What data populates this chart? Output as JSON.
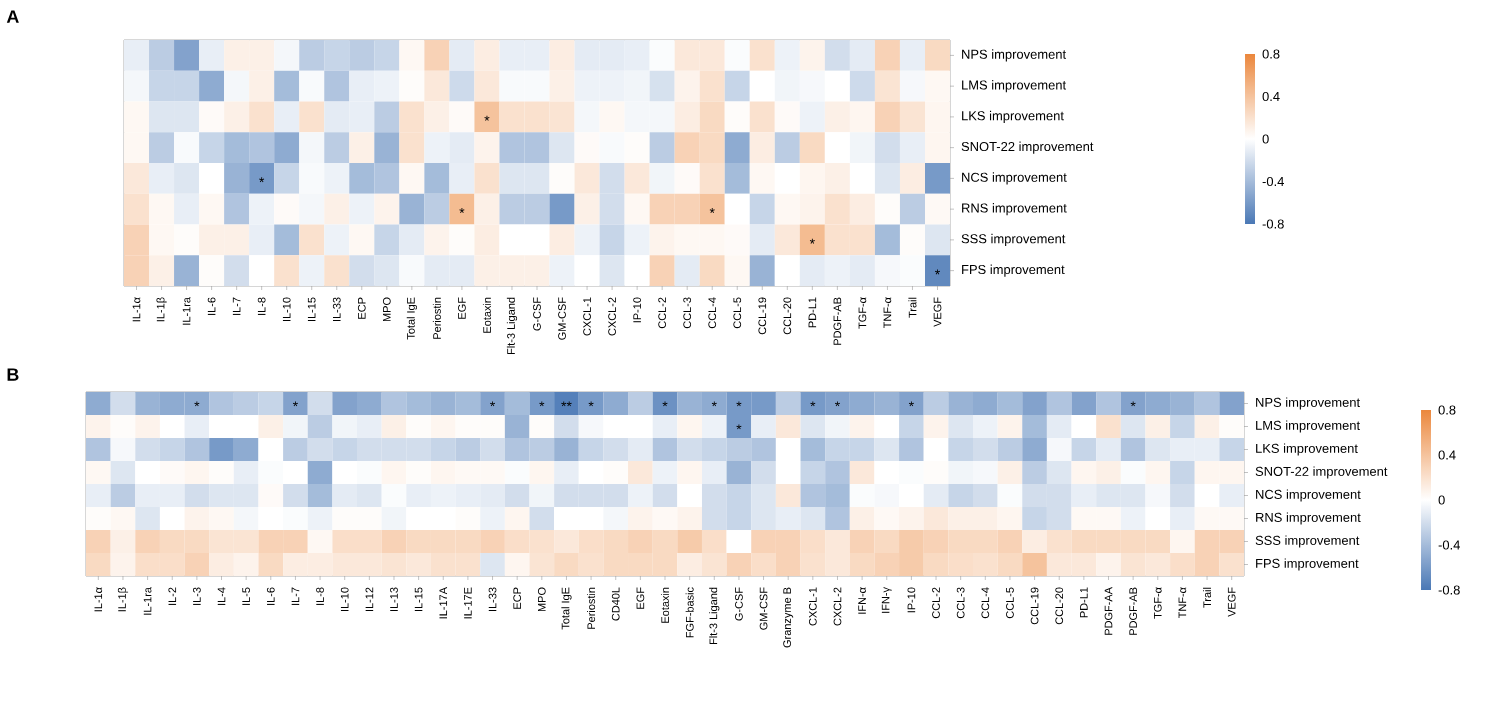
{
  "chart_data": [
    {
      "type": "heatmap",
      "title": "A",
      "categories": [
        "IL-1α",
        "IL-1β",
        "IL-1ra",
        "IL-6",
        "IL-7",
        "IL-8",
        "IL-10",
        "IL-15",
        "IL-33",
        "ECP",
        "MPO",
        "Total IgE",
        "Periostin",
        "EGF",
        "Eotaxin",
        "Flt-3 Ligand",
        "G-CSF",
        "GM-CSF",
        "CXCL-1",
        "CXCL-2",
        "IP-10",
        "CCL-2",
        "CCL-3",
        "CCL-4",
        "CCL-5",
        "CCL-19",
        "CCL-20",
        "PD-L1",
        "PDGF-AB",
        "TGF-α",
        "TNF-α",
        "Trail",
        "VEGF"
      ],
      "y_categories": [
        "NPS improvement",
        "LMS improvement",
        "LKS improvement",
        "SNOT-22 improvement",
        "NCS improvement",
        "RNS improvement",
        "SSS improvement",
        "FPS improvement"
      ],
      "cells": [
        [
          -0.1,
          -0.3,
          -0.55,
          -0.1,
          0.1,
          0.1,
          -0.05,
          -0.3,
          -0.25,
          -0.3,
          -0.25,
          0.05,
          0.3,
          -0.12,
          0.12,
          -0.1,
          -0.1,
          0.12,
          -0.12,
          -0.12,
          -0.1,
          -0.02,
          0.15,
          0.15,
          -0.02,
          0.2,
          -0.08,
          0.08,
          -0.2,
          -0.12,
          0.3,
          -0.1,
          0.25
        ],
        [
          -0.05,
          -0.25,
          -0.25,
          -0.5,
          -0.05,
          0.1,
          -0.4,
          -0.03,
          -0.35,
          -0.1,
          -0.08,
          0.02,
          0.15,
          -0.22,
          0.15,
          -0.03,
          -0.03,
          0.1,
          -0.08,
          -0.08,
          -0.06,
          -0.18,
          0.08,
          0.2,
          -0.25,
          0.0,
          -0.06,
          -0.04,
          0.0,
          -0.22,
          0.18,
          -0.04,
          0.05
        ],
        [
          0.05,
          -0.15,
          -0.15,
          0.03,
          0.1,
          0.2,
          -0.1,
          0.2,
          -0.12,
          -0.1,
          -0.3,
          0.2,
          0.1,
          0.03,
          0.4,
          0.2,
          0.2,
          0.18,
          -0.05,
          0.05,
          -0.05,
          -0.05,
          0.12,
          0.25,
          0.02,
          0.2,
          0.03,
          -0.08,
          0.1,
          0.06,
          0.3,
          0.18,
          0.06
        ],
        [
          0.05,
          -0.3,
          -0.03,
          -0.25,
          -0.4,
          -0.35,
          -0.5,
          -0.05,
          -0.3,
          0.1,
          -0.45,
          0.2,
          -0.08,
          -0.12,
          0.08,
          -0.35,
          -0.35,
          -0.15,
          0.03,
          -0.03,
          0.02,
          -0.3,
          0.3,
          0.25,
          -0.5,
          0.12,
          -0.3,
          0.25,
          0.0,
          -0.06,
          -0.2,
          -0.1,
          0.06
        ],
        [
          0.15,
          -0.1,
          -0.15,
          0.0,
          -0.45,
          -0.6,
          -0.25,
          -0.03,
          -0.08,
          -0.4,
          -0.35,
          0.05,
          -0.4,
          -0.1,
          0.2,
          -0.15,
          -0.15,
          0.02,
          0.15,
          -0.2,
          0.15,
          -0.06,
          0.03,
          0.2,
          -0.4,
          0.05,
          0.0,
          0.06,
          0.1,
          0.0,
          -0.15,
          0.12,
          -0.6
        ],
        [
          0.2,
          0.05,
          -0.1,
          0.05,
          -0.35,
          -0.08,
          0.03,
          -0.05,
          0.1,
          -0.08,
          0.08,
          -0.45,
          -0.3,
          0.45,
          0.1,
          -0.3,
          -0.3,
          -0.6,
          0.1,
          -0.2,
          0.05,
          0.3,
          0.3,
          0.4,
          0.0,
          -0.25,
          0.05,
          0.08,
          0.2,
          0.12,
          0.02,
          -0.3,
          0.04
        ],
        [
          0.3,
          0.05,
          0.02,
          0.1,
          0.1,
          -0.1,
          -0.4,
          0.2,
          -0.08,
          0.05,
          -0.25,
          -0.12,
          0.08,
          0.02,
          0.12,
          0.0,
          0.0,
          0.12,
          -0.08,
          -0.25,
          -0.08,
          0.08,
          0.05,
          0.05,
          0.03,
          -0.12,
          0.15,
          0.45,
          0.2,
          0.2,
          -0.4,
          0.02,
          -0.15
        ],
        [
          0.3,
          0.1,
          -0.45,
          0.02,
          -0.2,
          0.0,
          0.2,
          -0.08,
          0.2,
          -0.2,
          -0.15,
          -0.03,
          -0.12,
          -0.12,
          0.1,
          0.1,
          0.1,
          -0.08,
          0.0,
          -0.15,
          0.0,
          0.3,
          -0.12,
          0.25,
          0.05,
          -0.45,
          0.0,
          -0.12,
          -0.08,
          -0.12,
          -0.04,
          -0.02,
          -0.7
        ]
      ],
      "cell_labels": [
        [
          null,
          null,
          null,
          null,
          null,
          null,
          null,
          null,
          null,
          null,
          null,
          null,
          null,
          null,
          null,
          null,
          null,
          null,
          null,
          null,
          null,
          null,
          null,
          null,
          null,
          null,
          null,
          null,
          null,
          null,
          null,
          null,
          null
        ],
        [
          null,
          null,
          null,
          null,
          null,
          null,
          null,
          null,
          null,
          null,
          null,
          null,
          null,
          null,
          null,
          null,
          null,
          null,
          null,
          null,
          null,
          null,
          null,
          null,
          null,
          null,
          null,
          null,
          null,
          null,
          null,
          null,
          null
        ],
        [
          null,
          null,
          null,
          null,
          null,
          null,
          null,
          null,
          null,
          null,
          null,
          null,
          null,
          null,
          "*",
          null,
          null,
          null,
          null,
          null,
          null,
          null,
          null,
          null,
          null,
          null,
          null,
          null,
          null,
          null,
          null,
          null,
          null
        ],
        [
          null,
          null,
          null,
          null,
          null,
          null,
          null,
          null,
          null,
          null,
          null,
          null,
          null,
          null,
          null,
          null,
          null,
          null,
          null,
          null,
          null,
          null,
          null,
          null,
          null,
          null,
          null,
          null,
          null,
          null,
          null,
          null,
          null
        ],
        [
          null,
          null,
          null,
          null,
          null,
          "*",
          null,
          null,
          null,
          null,
          null,
          null,
          null,
          null,
          null,
          null,
          null,
          null,
          null,
          null,
          null,
          null,
          null,
          null,
          null,
          null,
          null,
          null,
          null,
          null,
          null,
          null,
          null
        ],
        [
          null,
          null,
          null,
          null,
          null,
          null,
          null,
          null,
          null,
          null,
          null,
          null,
          null,
          "*",
          null,
          null,
          null,
          null,
          null,
          null,
          null,
          null,
          null,
          "*",
          null,
          null,
          null,
          null,
          null,
          null,
          null,
          null,
          null
        ],
        [
          null,
          null,
          null,
          null,
          null,
          null,
          null,
          null,
          null,
          null,
          null,
          null,
          null,
          null,
          null,
          null,
          null,
          null,
          null,
          null,
          null,
          null,
          null,
          null,
          null,
          null,
          null,
          "*",
          null,
          null,
          null,
          null,
          null
        ],
        [
          null,
          null,
          null,
          null,
          null,
          null,
          null,
          null,
          null,
          null,
          null,
          null,
          null,
          null,
          null,
          null,
          null,
          null,
          null,
          null,
          null,
          null,
          null,
          null,
          null,
          null,
          null,
          null,
          null,
          null,
          null,
          null,
          "*"
        ]
      ],
      "clim": [
        -0.8,
        0.8
      ],
      "cticks": [
        -0.8,
        -0.4,
        0,
        0.4,
        0.8
      ]
    },
    {
      "type": "heatmap",
      "title": "B",
      "categories": [
        "IL-1α",
        "IL-1β",
        "IL-1ra",
        "IL-2",
        "IL-3",
        "IL-4",
        "IL-5",
        "IL-6",
        "IL-7",
        "IL-8",
        "IL-10",
        "IL-12",
        "IL-13",
        "IL-15",
        "IL-17A",
        "IL-17E",
        "IL-33",
        "ECP",
        "MPO",
        "Total IgE",
        "Periostin",
        "CD40L",
        "EGF",
        "Eotaxin",
        "FGF-basic",
        "Flt-3 Ligand",
        "G-CSF",
        "GM-CSF",
        "Granzyme B",
        "CXCL-1",
        "CXCL-2",
        "IFN-α",
        "IFN-γ",
        "IP-10",
        "CCL-2",
        "CCL-3",
        "CCL-4",
        "CCL-5",
        "CCL-19",
        "CCL-20",
        "PD-L1",
        "PDGF-AA",
        "PDGF-AB",
        "TGF-α",
        "TNF-α",
        "Trail",
        "VEGF"
      ],
      "y_categories": [
        "NPS improvement",
        "LMS improvement",
        "LKS improvement",
        "SNOT-22 improvement",
        "NCS improvement",
        "RNS improvement",
        "SSS improvement",
        "FPS improvement"
      ],
      "cells": [
        [
          -0.5,
          -0.2,
          -0.45,
          -0.5,
          -0.5,
          -0.35,
          -0.3,
          -0.25,
          -0.55,
          -0.2,
          -0.55,
          -0.5,
          -0.35,
          -0.4,
          -0.45,
          -0.4,
          -0.55,
          -0.4,
          -0.6,
          -0.75,
          -0.6,
          -0.5,
          -0.3,
          -0.65,
          -0.45,
          -0.5,
          -0.6,
          -0.6,
          -0.3,
          -0.6,
          -0.55,
          -0.5,
          -0.45,
          -0.55,
          -0.3,
          -0.45,
          -0.5,
          -0.4,
          -0.55,
          -0.35,
          -0.55,
          -0.35,
          -0.55,
          -0.5,
          -0.45,
          -0.35,
          -0.55
        ],
        [
          0.08,
          0.02,
          0.08,
          0.0,
          -0.1,
          0.0,
          0.0,
          0.1,
          -0.06,
          -0.3,
          -0.06,
          -0.1,
          0.1,
          0.02,
          0.06,
          0.02,
          0.02,
          -0.45,
          0.02,
          -0.2,
          -0.04,
          0.0,
          0.0,
          -0.1,
          0.06,
          -0.08,
          -0.6,
          -0.1,
          0.15,
          -0.15,
          -0.06,
          0.08,
          0.0,
          -0.25,
          0.08,
          -0.15,
          -0.08,
          0.08,
          -0.4,
          -0.12,
          0.0,
          0.2,
          -0.15,
          0.1,
          -0.25,
          0.1,
          0.02
        ],
        [
          -0.35,
          -0.04,
          -0.2,
          -0.25,
          -0.35,
          -0.6,
          -0.5,
          0.0,
          -0.3,
          -0.2,
          -0.25,
          -0.2,
          -0.2,
          -0.2,
          -0.25,
          -0.3,
          -0.2,
          -0.35,
          -0.3,
          -0.45,
          -0.25,
          -0.2,
          -0.12,
          -0.35,
          -0.2,
          -0.25,
          -0.3,
          -0.35,
          0.0,
          -0.4,
          -0.25,
          -0.25,
          -0.15,
          -0.35,
          0.0,
          -0.25,
          -0.2,
          -0.3,
          -0.5,
          -0.04,
          -0.25,
          -0.12,
          -0.35,
          -0.15,
          -0.1,
          -0.1,
          -0.25
        ],
        [
          0.05,
          -0.15,
          0.0,
          0.03,
          0.06,
          0.02,
          -0.1,
          -0.02,
          0.0,
          -0.5,
          0.0,
          -0.02,
          0.06,
          0.02,
          0.06,
          0.04,
          0.04,
          -0.02,
          0.06,
          -0.1,
          0.0,
          0.02,
          0.15,
          -0.08,
          0.06,
          -0.1,
          -0.45,
          -0.2,
          0.0,
          -0.25,
          -0.35,
          0.15,
          0.0,
          -0.02,
          0.02,
          -0.06,
          -0.04,
          0.1,
          -0.3,
          -0.15,
          0.06,
          0.1,
          -0.02,
          0.06,
          -0.25,
          0.06,
          0.06
        ],
        [
          -0.1,
          -0.3,
          -0.1,
          -0.1,
          -0.2,
          -0.15,
          -0.15,
          0.03,
          -0.2,
          -0.4,
          -0.12,
          -0.15,
          -0.02,
          -0.1,
          -0.08,
          -0.1,
          -0.12,
          -0.2,
          -0.06,
          -0.2,
          -0.2,
          -0.2,
          -0.08,
          -0.2,
          0.0,
          -0.2,
          -0.25,
          -0.15,
          0.15,
          -0.35,
          -0.4,
          -0.02,
          -0.04,
          0.0,
          -0.12,
          -0.25,
          -0.2,
          -0.02,
          -0.2,
          -0.2,
          -0.1,
          -0.15,
          -0.15,
          -0.04,
          -0.2,
          0.0,
          -0.1
        ],
        [
          0.02,
          0.05,
          -0.15,
          0.0,
          0.08,
          0.05,
          -0.05,
          0.0,
          -0.02,
          -0.08,
          0.02,
          0.02,
          -0.06,
          0.0,
          0.0,
          0.02,
          -0.08,
          0.06,
          -0.2,
          0.0,
          0.0,
          -0.05,
          0.08,
          0.04,
          0.08,
          -0.2,
          -0.25,
          -0.15,
          -0.1,
          -0.15,
          -0.35,
          0.1,
          0.04,
          0.08,
          0.15,
          0.1,
          0.1,
          0.06,
          -0.25,
          -0.2,
          0.04,
          0.04,
          -0.08,
          0.0,
          -0.1,
          0.04,
          0.04
        ],
        [
          0.3,
          0.1,
          0.3,
          0.25,
          0.25,
          0.18,
          0.18,
          0.3,
          0.3,
          0.05,
          0.22,
          0.22,
          0.3,
          0.25,
          0.25,
          0.25,
          0.3,
          0.22,
          0.2,
          0.15,
          0.22,
          0.25,
          0.3,
          0.25,
          0.35,
          0.22,
          0.0,
          0.3,
          0.3,
          0.22,
          0.15,
          0.3,
          0.25,
          0.35,
          0.3,
          0.25,
          0.25,
          0.3,
          0.12,
          0.2,
          0.25,
          0.25,
          0.25,
          0.25,
          0.06,
          0.3,
          0.3
        ],
        [
          0.25,
          0.08,
          0.22,
          0.22,
          0.3,
          0.12,
          0.08,
          0.25,
          0.12,
          0.12,
          0.15,
          0.15,
          0.18,
          0.15,
          0.2,
          0.2,
          -0.15,
          0.06,
          0.18,
          0.25,
          0.2,
          0.25,
          0.25,
          0.25,
          0.12,
          0.18,
          0.3,
          0.22,
          0.3,
          0.2,
          0.15,
          0.25,
          0.3,
          0.35,
          0.25,
          0.22,
          0.2,
          0.25,
          0.4,
          0.15,
          0.15,
          0.08,
          0.18,
          0.15,
          0.22,
          0.3,
          0.2
        ]
      ],
      "cell_labels": [
        [
          null,
          null,
          null,
          null,
          "*",
          null,
          null,
          null,
          "*",
          null,
          null,
          null,
          null,
          null,
          null,
          null,
          "*",
          null,
          "*",
          "**",
          "*",
          null,
          null,
          "*",
          null,
          "*",
          "*",
          null,
          null,
          "*",
          "*",
          null,
          null,
          "*",
          null,
          null,
          null,
          null,
          null,
          null,
          null,
          null,
          "*",
          null,
          null,
          null,
          null
        ],
        [
          null,
          null,
          null,
          null,
          null,
          null,
          null,
          null,
          null,
          null,
          null,
          null,
          null,
          null,
          null,
          null,
          null,
          null,
          null,
          null,
          null,
          null,
          null,
          null,
          null,
          null,
          "*",
          null,
          null,
          null,
          null,
          null,
          null,
          null,
          null,
          null,
          null,
          null,
          null,
          null,
          null,
          null,
          null,
          null,
          null,
          null,
          null
        ],
        [
          null,
          null,
          null,
          null,
          null,
          null,
          null,
          null,
          null,
          null,
          null,
          null,
          null,
          null,
          null,
          null,
          null,
          null,
          null,
          null,
          null,
          null,
          null,
          null,
          null,
          null,
          null,
          null,
          null,
          null,
          null,
          null,
          null,
          null,
          null,
          null,
          null,
          null,
          null,
          null,
          null,
          null,
          null,
          null,
          null,
          null,
          null
        ],
        [
          null,
          null,
          null,
          null,
          null,
          null,
          null,
          null,
          null,
          null,
          null,
          null,
          null,
          null,
          null,
          null,
          null,
          null,
          null,
          null,
          null,
          null,
          null,
          null,
          null,
          null,
          null,
          null,
          null,
          null,
          null,
          null,
          null,
          null,
          null,
          null,
          null,
          null,
          null,
          null,
          null,
          null,
          null,
          null,
          null,
          null,
          null
        ],
        [
          null,
          null,
          null,
          null,
          null,
          null,
          null,
          null,
          null,
          null,
          null,
          null,
          null,
          null,
          null,
          null,
          null,
          null,
          null,
          null,
          null,
          null,
          null,
          null,
          null,
          null,
          null,
          null,
          null,
          null,
          null,
          null,
          null,
          null,
          null,
          null,
          null,
          null,
          null,
          null,
          null,
          null,
          null,
          null,
          null,
          null,
          null
        ],
        [
          null,
          null,
          null,
          null,
          null,
          null,
          null,
          null,
          null,
          null,
          null,
          null,
          null,
          null,
          null,
          null,
          null,
          null,
          null,
          null,
          null,
          null,
          null,
          null,
          null,
          null,
          null,
          null,
          null,
          null,
          null,
          null,
          null,
          null,
          null,
          null,
          null,
          null,
          null,
          null,
          null,
          null,
          null,
          null,
          null,
          null,
          null
        ],
        [
          null,
          null,
          null,
          null,
          null,
          null,
          null,
          null,
          null,
          null,
          null,
          null,
          null,
          null,
          null,
          null,
          null,
          null,
          null,
          null,
          null,
          null,
          null,
          null,
          null,
          null,
          null,
          null,
          null,
          null,
          null,
          null,
          null,
          null,
          null,
          null,
          null,
          null,
          null,
          null,
          null,
          null,
          null,
          null,
          null,
          null,
          null
        ],
        [
          null,
          null,
          null,
          null,
          null,
          null,
          null,
          null,
          null,
          null,
          null,
          null,
          null,
          null,
          null,
          null,
          null,
          null,
          null,
          null,
          null,
          null,
          null,
          null,
          null,
          null,
          null,
          null,
          null,
          null,
          null,
          null,
          null,
          null,
          null,
          null,
          null,
          null,
          null,
          null,
          null,
          null,
          null,
          null,
          null,
          null,
          null
        ]
      ],
      "clim": [
        -0.8,
        0.8
      ],
      "cticks": [
        -0.8,
        -0.4,
        0,
        0.4,
        0.8
      ]
    }
  ]
}
